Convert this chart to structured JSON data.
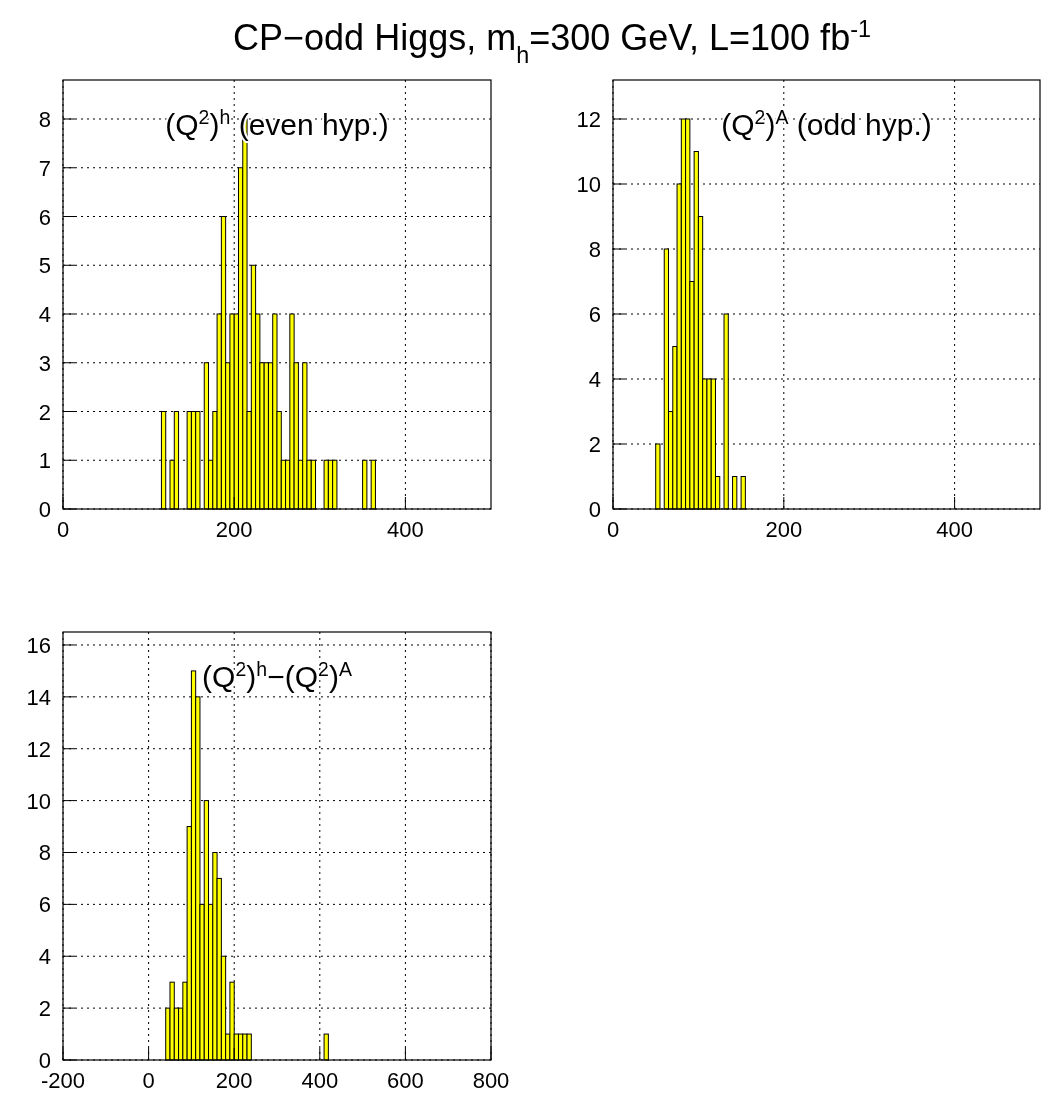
{
  "chart_data": [
    {
      "type": "histogram",
      "title": "CP−odd Higgs, m$_{h}$=300 GeV, L=100 fb$^{-1}$",
      "annotations": [
        "(Q$^{2}$)$^{h}$ (even hyp.)"
      ],
      "color": "#ffff00",
      "grid": true,
      "xlim": [
        0,
        500
      ],
      "xticks": [
        0,
        200,
        400
      ],
      "ylim": [
        0,
        8.8
      ],
      "yticks": [
        0,
        1,
        2,
        3,
        4,
        5,
        6,
        7,
        8
      ],
      "bins": [
        115,
        120,
        125,
        130,
        135,
        140,
        145,
        150,
        155,
        160,
        165,
        170,
        175,
        180,
        185,
        190,
        195,
        200,
        205,
        210,
        215,
        220,
        225,
        230,
        235,
        240,
        245,
        250,
        255,
        260,
        265,
        270,
        275,
        280,
        285,
        290,
        295,
        300,
        305,
        310,
        315,
        320,
        325,
        330,
        335,
        340,
        345,
        350,
        355,
        360,
        365
      ],
      "values": [
        2,
        0,
        1,
        2,
        0,
        0,
        2,
        2,
        2,
        0,
        3,
        1,
        2,
        4,
        6,
        3,
        4,
        4,
        7,
        8,
        2,
        5,
        4,
        3,
        3,
        3,
        4,
        2,
        1,
        1,
        4,
        3,
        1,
        3,
        1,
        1,
        0,
        0,
        1,
        1,
        1,
        0,
        0,
        0,
        0,
        0,
        0,
        1,
        0,
        1
      ]
    },
    {
      "type": "histogram",
      "annotations": [
        "(Q$^{2}$)$^{A}$ (odd hyp.)"
      ],
      "color": "#ffff00",
      "grid": true,
      "xlim": [
        0,
        500
      ],
      "xticks": [
        0,
        200,
        400
      ],
      "ylim": [
        0,
        13.2
      ],
      "yticks": [
        0,
        2,
        4,
        6,
        8,
        10,
        12
      ],
      "bins": [
        50,
        55,
        60,
        65,
        70,
        75,
        80,
        85,
        90,
        95,
        100,
        105,
        110,
        115,
        120,
        125,
        130,
        135,
        140,
        145,
        150,
        155
      ],
      "values": [
        2,
        0,
        8,
        3,
        5,
        10,
        12,
        12,
        7,
        11,
        9,
        4,
        4,
        4,
        1,
        0,
        6,
        0,
        1,
        0,
        1
      ]
    },
    {
      "type": "histogram",
      "annotations": [
        "(Q$^{2}$)$^{h}$−(Q$^{2}$)$^{A}$"
      ],
      "color": "#ffff00",
      "grid": true,
      "xlim": [
        -200,
        800
      ],
      "xticks": [
        -200,
        0,
        200,
        400,
        600,
        800
      ],
      "ylim": [
        0,
        16.5
      ],
      "yticks": [
        0,
        2,
        4,
        6,
        8,
        10,
        12,
        14,
        16
      ],
      "bins": [
        40,
        50,
        60,
        70,
        80,
        90,
        100,
        110,
        120,
        130,
        140,
        150,
        160,
        170,
        180,
        190,
        200,
        210,
        220,
        230,
        240,
        250,
        260,
        270,
        280,
        290,
        300,
        310,
        320,
        330,
        340,
        350,
        360,
        370,
        380,
        390,
        400,
        410,
        420
      ],
      "values": [
        2,
        3,
        2,
        2,
        3,
        9,
        15,
        14,
        6,
        10,
        6,
        8,
        7,
        4,
        1,
        3,
        1,
        1,
        1,
        1,
        0,
        0,
        0,
        0,
        0,
        0,
        0,
        0,
        0,
        0,
        0,
        0,
        0,
        0,
        0,
        0,
        0,
        1
      ]
    }
  ]
}
